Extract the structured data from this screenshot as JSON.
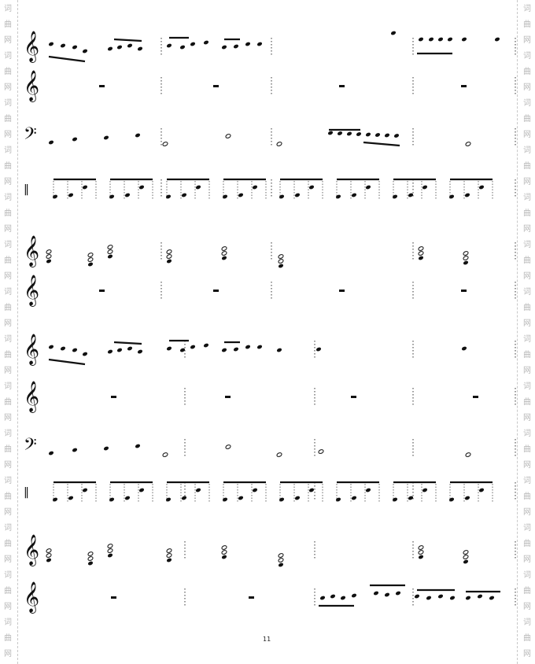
{
  "watermark": {
    "chars": [
      "词",
      "曲",
      "网"
    ]
  },
  "page_number": "11",
  "systems": 2,
  "staves_per_system": [
    "treble",
    "treble",
    "bass",
    "percussion",
    "treble",
    "treble"
  ]
}
